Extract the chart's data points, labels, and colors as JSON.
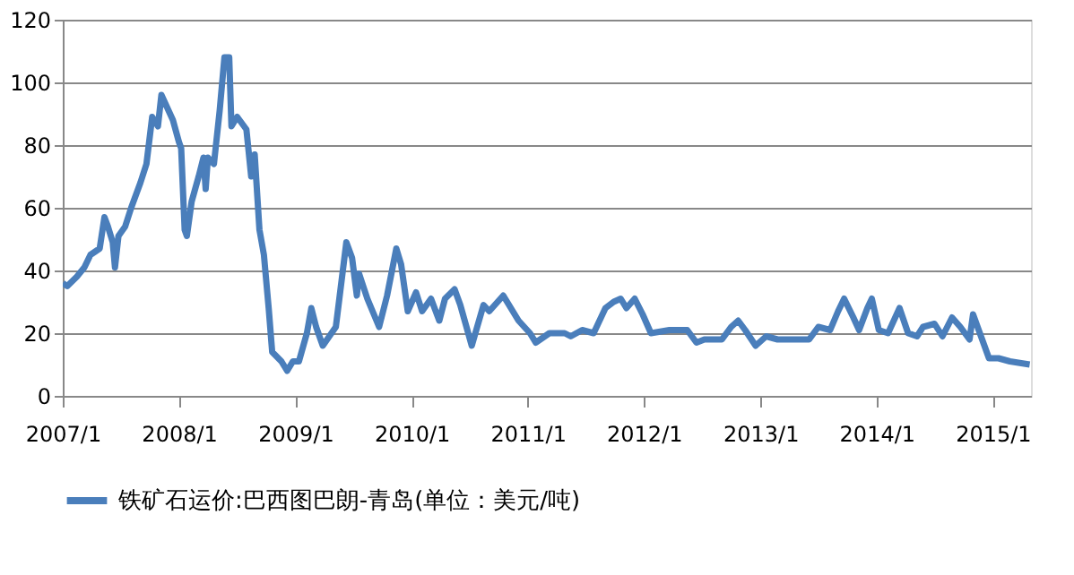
{
  "chart_data": {
    "type": "line",
    "xlim": [
      "2007-01-01",
      "2015-05-01"
    ],
    "xticks": [
      {
        "value": "2007-01-01",
        "label": "2007/1"
      },
      {
        "value": "2008-01-01",
        "label": "2008/1"
      },
      {
        "value": "2009-01-01",
        "label": "2009/1"
      },
      {
        "value": "2010-01-01",
        "label": "2010/1"
      },
      {
        "value": "2011-01-01",
        "label": "2011/1"
      },
      {
        "value": "2012-01-01",
        "label": "2012/1"
      },
      {
        "value": "2013-01-01",
        "label": "2013/1"
      },
      {
        "value": "2014-01-01",
        "label": "2014/1"
      },
      {
        "value": "2015-01-01",
        "label": "2015/1"
      }
    ],
    "ylim": [
      0,
      120
    ],
    "yticks": [
      0,
      20,
      40,
      60,
      80,
      100,
      120
    ],
    "grid": "y",
    "legend": "bottom",
    "marker": "none",
    "line_style": "solid",
    "x": [
      "2007-01-01",
      "2007-01-15",
      "2007-02-14",
      "2007-03-10",
      "2007-03-29",
      "2007-04-27",
      "2007-05-12",
      "2007-05-23",
      "2007-06-07",
      "2007-06-14",
      "2007-06-25",
      "2007-07-16",
      "2007-08-04",
      "2007-09-02",
      "2007-09-21",
      "2007-10-09",
      "2007-10-27",
      "2007-11-07",
      "2007-11-25",
      "2007-12-13",
      "2008-01-01",
      "2008-01-08",
      "2008-01-19",
      "2008-01-26",
      "2008-02-10",
      "2008-03-03",
      "2008-03-18",
      "2008-03-25",
      "2008-04-01",
      "2008-04-20",
      "2008-05-08",
      "2008-05-23",
      "2008-06-07",
      "2008-06-14",
      "2008-07-02",
      "2008-07-31",
      "2008-08-15",
      "2008-08-26",
      "2008-09-10",
      "2008-09-24",
      "2008-10-09",
      "2008-10-20",
      "2008-11-18",
      "2008-12-06",
      "2008-12-24",
      "2009-01-12",
      "2009-02-06",
      "2009-02-20",
      "2009-03-07",
      "2009-03-28",
      "2009-05-08",
      "2009-06-10",
      "2009-06-28",
      "2009-07-13",
      "2009-07-20",
      "2009-08-15",
      "2009-09-21",
      "2009-10-16",
      "2009-11-14",
      "2009-11-29",
      "2009-12-20",
      "2010-01-15",
      "2010-02-03",
      "2010-03-03",
      "2010-03-29",
      "2010-04-16",
      "2010-05-16",
      "2010-06-03",
      "2010-07-09",
      "2010-08-15",
      "2010-09-02",
      "2010-10-16",
      "2010-12-03",
      "2011-01-08",
      "2011-01-26",
      "2011-03-10",
      "2011-04-27",
      "2011-05-16",
      "2011-06-21",
      "2011-07-27",
      "2011-09-02",
      "2011-09-28",
      "2011-10-20",
      "2011-11-07",
      "2011-12-03",
      "2011-12-28",
      "2012-01-23",
      "2012-03-21",
      "2012-05-16",
      "2012-06-14",
      "2012-07-09",
      "2012-09-02",
      "2012-10-01",
      "2012-10-23",
      "2012-11-14",
      "2012-12-17",
      "2013-01-19",
      "2013-02-24",
      "2013-06-03",
      "2013-07-02",
      "2013-08-08",
      "2013-09-02",
      "2013-09-21",
      "2013-10-20",
      "2013-11-07",
      "2013-12-03",
      "2013-12-17",
      "2014-01-08",
      "2014-02-06",
      "2014-03-14",
      "2014-04-10",
      "2014-05-08",
      "2014-05-27",
      "2014-07-02",
      "2014-07-27",
      "2014-08-26",
      "2014-09-21",
      "2014-10-20",
      "2014-10-31",
      "2014-11-25",
      "2014-12-20",
      "2015-01-19",
      "2015-02-24",
      "2015-04-27"
    ],
    "series": [
      {
        "name": "铁矿石运价:巴西图巴朗-青岛(单位：美元/吨)",
        "color": "#4a7ebb",
        "values": [
          36,
          35,
          38,
          41,
          45,
          47,
          57,
          54,
          49,
          41,
          51,
          54,
          60,
          68,
          74,
          89,
          86,
          96,
          92,
          88,
          81,
          79,
          53,
          51,
          62,
          70,
          76,
          66,
          76,
          74,
          91,
          108,
          108,
          86,
          89,
          85,
          70,
          77,
          53,
          45,
          28,
          14,
          11,
          8,
          11,
          11,
          20,
          28,
          22,
          16,
          22,
          49,
          44,
          32,
          39,
          31,
          22,
          32,
          47,
          42,
          27,
          33,
          27,
          31,
          24,
          31,
          34,
          29,
          16,
          29,
          27,
          32,
          24,
          20,
          17,
          20,
          20,
          19,
          21,
          20,
          28,
          30,
          31,
          28,
          31,
          26,
          20,
          21,
          21,
          17,
          18,
          18,
          22,
          24,
          21,
          16,
          19,
          18,
          18,
          22,
          21,
          27,
          31,
          25,
          21,
          28,
          31,
          21,
          20,
          28,
          20,
          19,
          22,
          23,
          19,
          25,
          22,
          18,
          26,
          19,
          12,
          12,
          11,
          10
        ]
      }
    ]
  }
}
